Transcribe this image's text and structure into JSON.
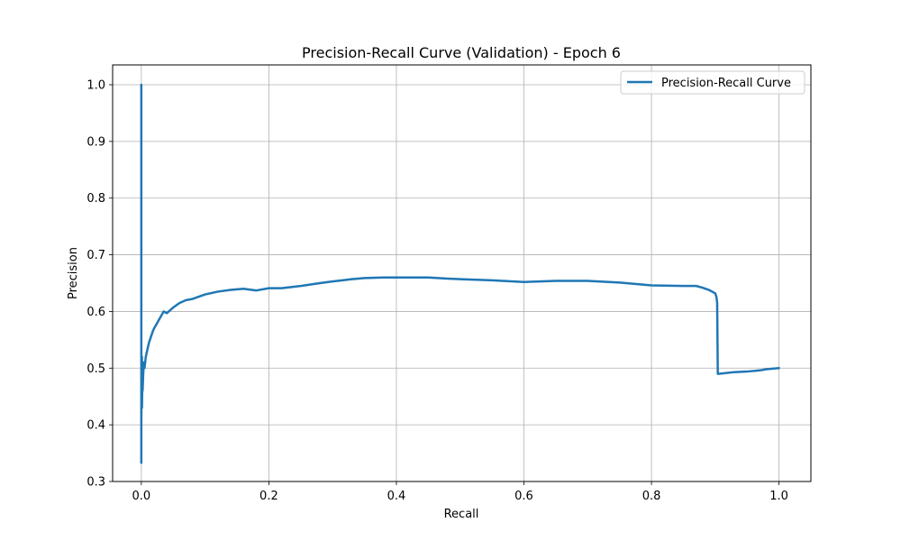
{
  "chart_data": {
    "type": "line",
    "title": "Precision-Recall Curve (Validation) - Epoch 6",
    "xlabel": "Recall",
    "ylabel": "Precision",
    "xlim": [
      -0.045,
      1.05
    ],
    "ylim": [
      0.3,
      1.035
    ],
    "xticks": [
      0.0,
      0.2,
      0.4,
      0.6,
      0.8,
      1.0
    ],
    "xtick_labels": [
      "0.0",
      "0.2",
      "0.4",
      "0.6",
      "0.8",
      "1.0"
    ],
    "yticks": [
      0.3,
      0.4,
      0.5,
      0.6,
      0.7,
      0.8,
      0.9,
      1.0
    ],
    "ytick_labels": [
      "0.3",
      "0.4",
      "0.5",
      "0.6",
      "0.7",
      "0.8",
      "0.9",
      "1.0"
    ],
    "grid": true,
    "legend_position": "top-right",
    "series": [
      {
        "name": "Precision-Recall Curve",
        "color": "#1f77b4",
        "x": [
          0.0,
          0.0,
          0.0,
          0.0,
          0.0,
          0.001,
          0.001,
          0.002,
          0.002,
          0.003,
          0.004,
          0.005,
          0.007,
          0.009,
          0.012,
          0.015,
          0.018,
          0.02,
          0.025,
          0.03,
          0.035,
          0.04,
          0.05,
          0.06,
          0.07,
          0.08,
          0.09,
          0.1,
          0.12,
          0.14,
          0.16,
          0.18,
          0.2,
          0.22,
          0.25,
          0.28,
          0.3,
          0.33,
          0.35,
          0.38,
          0.4,
          0.42,
          0.45,
          0.48,
          0.5,
          0.55,
          0.6,
          0.65,
          0.7,
          0.75,
          0.8,
          0.85,
          0.87,
          0.88,
          0.89,
          0.9,
          0.902,
          0.903,
          0.904,
          0.905,
          0.93,
          0.95,
          0.97,
          0.98,
          1.0
        ],
        "y": [
          1.0,
          0.333,
          0.6,
          0.45,
          0.41,
          0.52,
          0.43,
          0.5,
          0.46,
          0.49,
          0.51,
          0.5,
          0.52,
          0.53,
          0.545,
          0.555,
          0.565,
          0.57,
          0.58,
          0.59,
          0.6,
          0.597,
          0.607,
          0.615,
          0.62,
          0.622,
          0.626,
          0.63,
          0.635,
          0.638,
          0.64,
          0.637,
          0.641,
          0.641,
          0.645,
          0.65,
          0.653,
          0.657,
          0.659,
          0.66,
          0.66,
          0.66,
          0.66,
          0.658,
          0.657,
          0.655,
          0.652,
          0.654,
          0.654,
          0.651,
          0.646,
          0.645,
          0.645,
          0.642,
          0.638,
          0.632,
          0.625,
          0.615,
          0.49,
          0.49,
          0.493,
          0.494,
          0.496,
          0.498,
          0.5
        ]
      }
    ]
  }
}
